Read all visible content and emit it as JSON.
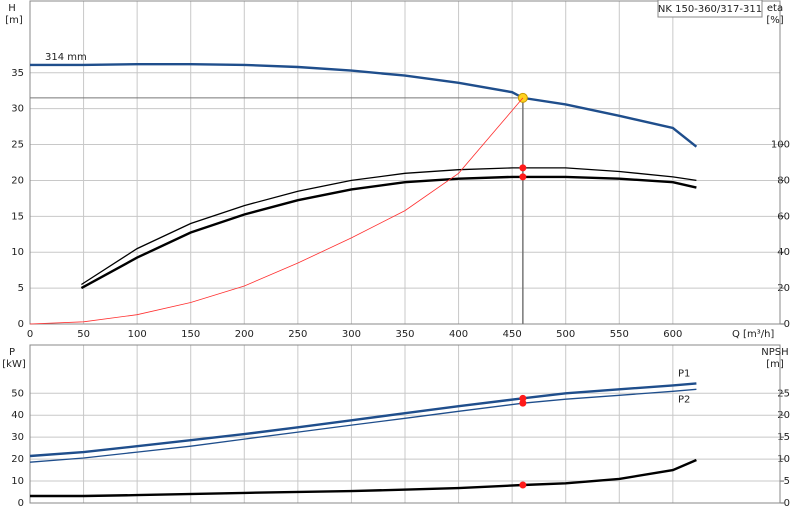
{
  "chart_data": [
    {
      "type": "line",
      "title": "NK 150-360/317-311",
      "xlabel": "Q [m³/h]",
      "ylabel": "H",
      "yunit": "[m]",
      "y2label": "eta",
      "y2unit": "[%]",
      "xlim": [
        0,
        700
      ],
      "xticks": [
        0,
        50,
        100,
        150,
        200,
        250,
        300,
        350,
        400,
        450,
        500,
        550,
        600
      ],
      "ylim": [
        0,
        45
      ],
      "yticks": [
        0,
        5,
        10,
        15,
        20,
        25,
        30,
        35
      ],
      "y2lim": [
        0,
        180
      ],
      "y2ticks": [
        0,
        20,
        40,
        60,
        80,
        100
      ],
      "grid": true,
      "legend": "start",
      "operating_point": {
        "x": 460,
        "y": 31.5
      },
      "series": [
        {
          "name": "314 mm",
          "color": "#1f4e8c",
          "style": "thick",
          "x": [
            0,
            50,
            100,
            150,
            200,
            250,
            300,
            350,
            400,
            450,
            460,
            500,
            550,
            600,
            622
          ],
          "values": [
            36.1,
            36.1,
            36.2,
            36.2,
            36.1,
            35.8,
            35.3,
            34.6,
            33.6,
            32.3,
            31.5,
            30.6,
            29.0,
            27.3,
            24.7
          ]
        },
        {
          "color": "#000000",
          "style": "medium",
          "axis": "y2",
          "x": [
            48,
            100,
            150,
            200,
            250,
            300,
            350,
            400,
            450,
            460,
            500,
            550,
            600,
            622
          ],
          "values": [
            22,
            42,
            56,
            66,
            74,
            80,
            84,
            86,
            87,
            87,
            87,
            85,
            82,
            80
          ]
        },
        {
          "color": "#000000",
          "style": "thick",
          "axis": "y2",
          "x": [
            48,
            100,
            150,
            200,
            250,
            300,
            350,
            400,
            450,
            460,
            500,
            550,
            600,
            622
          ],
          "values": [
            20,
            37,
            51,
            61,
            69,
            75,
            79,
            81,
            82,
            82,
            82,
            81,
            79,
            76
          ]
        },
        {
          "color": "#ff3030",
          "style": "thin",
          "x": [
            0,
            50,
            100,
            150,
            200,
            250,
            300,
            350,
            400,
            460
          ],
          "values": [
            0,
            0.3,
            1.3,
            3.0,
            5.3,
            8.5,
            12.0,
            15.8,
            21.0,
            31.5
          ]
        }
      ]
    },
    {
      "type": "line",
      "ylabel": "P",
      "yunit": "[kW]",
      "y2label": "NPSH",
      "y2unit": "[m]",
      "xlim": [
        0,
        700
      ],
      "ylim": [
        0,
        72
      ],
      "yticks": [
        0,
        10,
        20,
        30,
        40,
        50
      ],
      "y2lim": [
        0,
        36
      ],
      "y2ticks": [
        0,
        5,
        10,
        15,
        20,
        25
      ],
      "grid": true,
      "legend": "end",
      "operating_point": {
        "x": 460
      },
      "series": [
        {
          "name": "P1",
          "color": "#1f4e8c",
          "style": "thick",
          "x": [
            0,
            50,
            100,
            150,
            200,
            250,
            300,
            350,
            400,
            460,
            500,
            550,
            600,
            622
          ],
          "values": [
            21.4,
            23.2,
            25.9,
            28.6,
            31.4,
            34.5,
            37.7,
            40.9,
            44.1,
            47.7,
            50.0,
            51.8,
            53.6,
            54.5
          ]
        },
        {
          "name": "P2",
          "color": "#1f4e8c",
          "style": "medium",
          "x": [
            0,
            50,
            100,
            150,
            200,
            250,
            300,
            350,
            400,
            460,
            500,
            550,
            600,
            622
          ],
          "values": [
            18.6,
            20.5,
            23.2,
            25.9,
            29.1,
            32.3,
            35.5,
            38.6,
            41.8,
            45.5,
            47.3,
            49.1,
            50.9,
            51.8
          ]
        },
        {
          "color": "#000000",
          "style": "thick",
          "axis": "y2",
          "x": [
            0,
            50,
            100,
            200,
            300,
            400,
            460,
            500,
            550,
            600,
            622
          ],
          "values": [
            1.6,
            1.6,
            1.8,
            2.3,
            2.7,
            3.4,
            4.1,
            4.5,
            5.5,
            7.5,
            9.8
          ]
        }
      ]
    }
  ]
}
